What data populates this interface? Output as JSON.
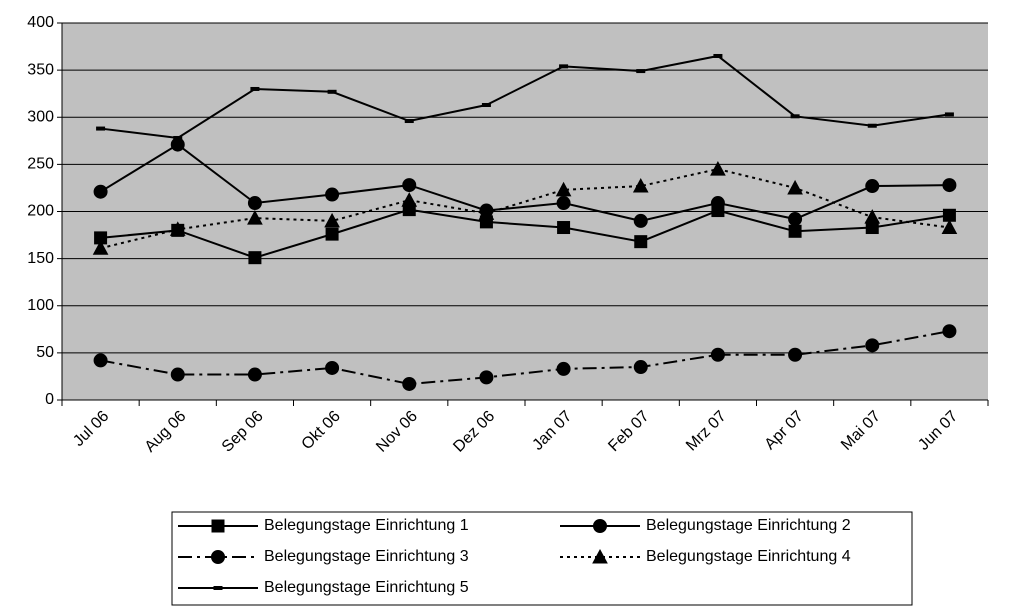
{
  "chart_data": {
    "type": "line",
    "categories": [
      "Jul 06",
      "Aug 06",
      "Sep 06",
      "Okt 06",
      "Nov 06",
      "Dez 06",
      "Jan 07",
      "Feb 07",
      "Mrz 07",
      "Apr 07",
      "Mai 07",
      "Jun 07"
    ],
    "series": [
      {
        "name": "Belegungstage Einrichtung 1",
        "color": "#000000",
        "marker": "square",
        "line": "solid",
        "values": [
          172,
          180,
          151,
          176,
          202,
          189,
          183,
          168,
          201,
          179,
          183,
          196
        ]
      },
      {
        "name": "Belegungstage Einrichtung 2",
        "color": "#000000",
        "marker": "circle",
        "line": "solid",
        "values": [
          221,
          271,
          209,
          218,
          228,
          201,
          209,
          190,
          209,
          192,
          227,
          228
        ]
      },
      {
        "name": "Belegungstage Einrichtung 3",
        "color": "#000000",
        "marker": "circle",
        "line": "dashdot",
        "values": [
          42,
          27,
          27,
          34,
          17,
          24,
          33,
          35,
          48,
          48,
          58,
          73
        ]
      },
      {
        "name": "Belegungstage Einrichtung 4",
        "color": "#000000",
        "marker": "triangle",
        "line": "dotted",
        "values": [
          161,
          181,
          193,
          190,
          212,
          198,
          223,
          227,
          245,
          225,
          194,
          183
        ]
      },
      {
        "name": "Belegungstage Einrichtung 5",
        "color": "#000000",
        "marker": "dash",
        "line": "solid",
        "values": [
          288,
          278,
          330,
          327,
          296,
          313,
          354,
          349,
          365,
          301,
          291,
          303
        ]
      }
    ],
    "ylim": [
      0,
      400
    ],
    "yticks": [
      0,
      50,
      100,
      150,
      200,
      250,
      300,
      350,
      400
    ],
    "grid": true,
    "plot_background": "#c0c0c0",
    "legend": "bottom"
  }
}
